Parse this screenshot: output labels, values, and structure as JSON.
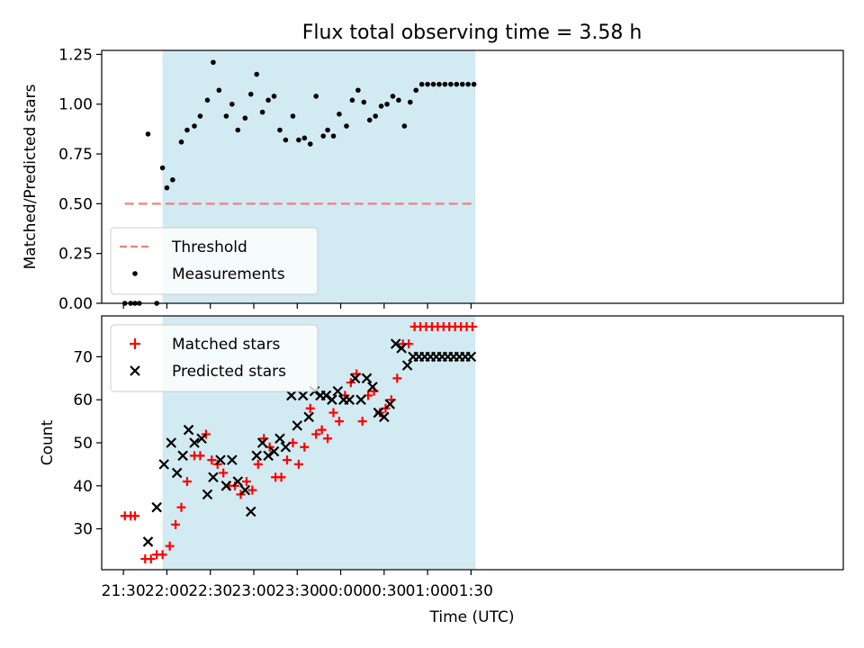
{
  "chart_data": {
    "title": "Flux total observing time = 3.58 h",
    "xlabel": "Time (UTC)",
    "x_unit": "UTC clock time; times after midnight belong to the next day",
    "xticks": [
      "21:30",
      "22:00",
      "22:30",
      "23:00",
      "23:30",
      "00:00",
      "00:30",
      "01:00",
      "01:30"
    ],
    "observing_window": {
      "start": "21:57",
      "end": "01:33",
      "color": "#add8e6"
    },
    "panels": [
      {
        "type": "scatter",
        "ylabel": "Matched/Predicted stars",
        "ylim": [
          0,
          1.27
        ],
        "yticks": [
          "0.00",
          "0.25",
          "0.50",
          "0.75",
          "1.00",
          "1.25"
        ],
        "yticks_values": [
          0,
          0.25,
          0.5,
          0.75,
          1.0,
          1.25
        ],
        "legend_position": "lower-left",
        "threshold": {
          "name": "Threshold",
          "value": 0.5,
          "x_start": "21:31",
          "x_end": "01:33",
          "color": "#f08080",
          "style": "dashed"
        },
        "series": [
          {
            "name": "Measurements",
            "color": "#000000",
            "marker": "dot",
            "x": [
              "21:31",
              "21:35",
              "21:38",
              "21:41",
              "21:47",
              "21:53",
              "21:57",
              "22:00",
              "22:04",
              "22:10",
              "22:14",
              "22:19",
              "22:23",
              "22:28",
              "22:32",
              "22:36",
              "22:41",
              "22:45",
              "22:49",
              "22:54",
              "22:58",
              "23:02",
              "23:06",
              "23:10",
              "23:14",
              "23:18",
              "23:22",
              "23:27",
              "23:31",
              "23:35",
              "23:39",
              "23:43",
              "23:48",
              "23:51",
              "23:55",
              "23:59",
              "00:04",
              "00:08",
              "00:12",
              "00:16",
              "00:20",
              "00:24",
              "00:28",
              "00:32",
              "00:36",
              "00:40",
              "00:44",
              "00:48",
              "00:52",
              "00:56",
              "01:00",
              "01:04",
              "01:08",
              "01:12",
              "01:16",
              "01:20",
              "01:24",
              "01:28",
              "01:32"
            ],
            "y": [
              0,
              0,
              0,
              0,
              0.85,
              0,
              0.68,
              0.58,
              0.62,
              0.81,
              0.87,
              0.89,
              0.94,
              1.02,
              1.21,
              1.07,
              0.94,
              1.0,
              0.87,
              0.93,
              1.05,
              1.15,
              0.96,
              1.02,
              1.04,
              0.87,
              0.82,
              0.94,
              0.82,
              0.83,
              0.8,
              1.04,
              0.84,
              0.87,
              0.84,
              0.95,
              0.89,
              1.02,
              1.07,
              1.01,
              0.92,
              0.94,
              0.99,
              1.0,
              1.04,
              1.02,
              0.89,
              1.01,
              1.07,
              1.1,
              1.1,
              1.1,
              1.1,
              1.1,
              1.1,
              1.1,
              1.1,
              1.1,
              1.1
            ]
          }
        ]
      },
      {
        "type": "scatter",
        "ylabel": "Count",
        "ylim": [
          20.5,
          79.5
        ],
        "yticks": [
          "30",
          "40",
          "50",
          "60",
          "70"
        ],
        "yticks_values": [
          30,
          40,
          50,
          60,
          70
        ],
        "legend_position": "upper-left",
        "series": [
          {
            "name": "Matched stars",
            "color": "#ff0000",
            "marker": "plus",
            "x": [
              "21:31",
              "21:35",
              "21:38",
              "21:45",
              "21:49",
              "21:53",
              "21:57",
              "22:02",
              "22:06",
              "22:10",
              "22:14",
              "22:19",
              "22:23",
              "22:27",
              "22:31",
              "22:35",
              "22:39",
              "22:43",
              "22:47",
              "22:51",
              "22:55",
              "22:59",
              "23:03",
              "23:07",
              "23:11",
              "23:15",
              "23:19",
              "23:23",
              "23:27",
              "23:31",
              "23:35",
              "23:39",
              "23:43",
              "23:47",
              "23:51",
              "23:55",
              "23:59",
              "00:03",
              "00:07",
              "00:11",
              "00:15",
              "00:19",
              "00:23",
              "00:27",
              "00:31",
              "00:35",
              "00:39",
              "00:43",
              "00:47",
              "00:51",
              "00:55",
              "00:59",
              "01:03",
              "01:07",
              "01:11",
              "01:15",
              "01:19",
              "01:23",
              "01:27",
              "01:31"
            ],
            "y": [
              33,
              33,
              33,
              23,
              23,
              24,
              24,
              26,
              31,
              35,
              41,
              47,
              47,
              52,
              46,
              45,
              43,
              40,
              40,
              38,
              41,
              39,
              45,
              51,
              49,
              42,
              42,
              46,
              50,
              45,
              49,
              58,
              52,
              53,
              51,
              57,
              55,
              61,
              64,
              66,
              55,
              61,
              62,
              57,
              58,
              60,
              65,
              73,
              73,
              77,
              77,
              77,
              77,
              77,
              77,
              77,
              77,
              77,
              77,
              77
            ]
          },
          {
            "name": "Predicted stars",
            "color": "#000000",
            "marker": "x",
            "x": [
              "21:47",
              "21:53",
              "21:58",
              "22:03",
              "22:07",
              "22:11",
              "22:15",
              "22:19",
              "22:24",
              "22:28",
              "22:32",
              "22:37",
              "22:41",
              "22:45",
              "22:49",
              "22:54",
              "22:58",
              "23:02",
              "23:06",
              "23:10",
              "23:14",
              "23:18",
              "23:22",
              "23:26",
              "23:30",
              "23:34",
              "23:38",
              "23:42",
              "23:46",
              "23:50",
              "23:54",
              "23:58",
              "00:02",
              "00:06",
              "00:10",
              "00:14",
              "00:18",
              "00:22",
              "00:26",
              "00:30",
              "00:34",
              "00:38",
              "00:42",
              "00:46",
              "00:50",
              "00:54",
              "00:58",
              "01:02",
              "01:06",
              "01:10",
              "01:14",
              "01:18",
              "01:22",
              "01:26",
              "01:30"
            ],
            "y": [
              27,
              35,
              45,
              50,
              43,
              47,
              53,
              50,
              51,
              38,
              42,
              46,
              40,
              46,
              41,
              39,
              34,
              47,
              50,
              47,
              48,
              51,
              49,
              61,
              54,
              61,
              56,
              62,
              61,
              61,
              60,
              62,
              60,
              60,
              65,
              60,
              65,
              63,
              57,
              56,
              59,
              73,
              72,
              68,
              70,
              70,
              70,
              70,
              70,
              70,
              70,
              70,
              70,
              70,
              70
            ]
          }
        ]
      }
    ]
  }
}
